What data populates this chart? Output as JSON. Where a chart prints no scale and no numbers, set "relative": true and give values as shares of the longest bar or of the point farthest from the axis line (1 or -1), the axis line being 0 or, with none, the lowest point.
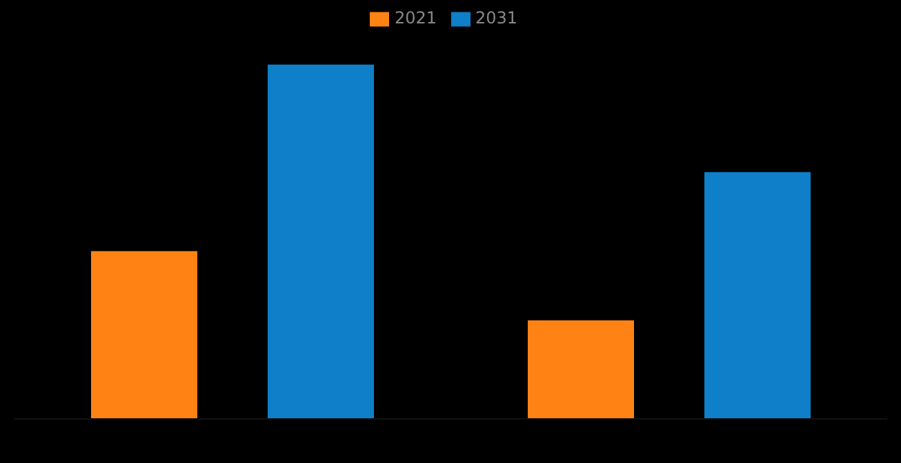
{
  "chart_data": {
    "type": "bar",
    "relative": true,
    "categories": [
      null,
      null
    ],
    "series": [
      {
        "name": "2021",
        "color": "#ff8314",
        "values": [
          0.473,
          0.278
        ]
      },
      {
        "name": "2031",
        "color": "#0f7fca",
        "values": [
          1,
          0.696
        ]
      }
    ],
    "legend": "top",
    "grid": false
  }
}
